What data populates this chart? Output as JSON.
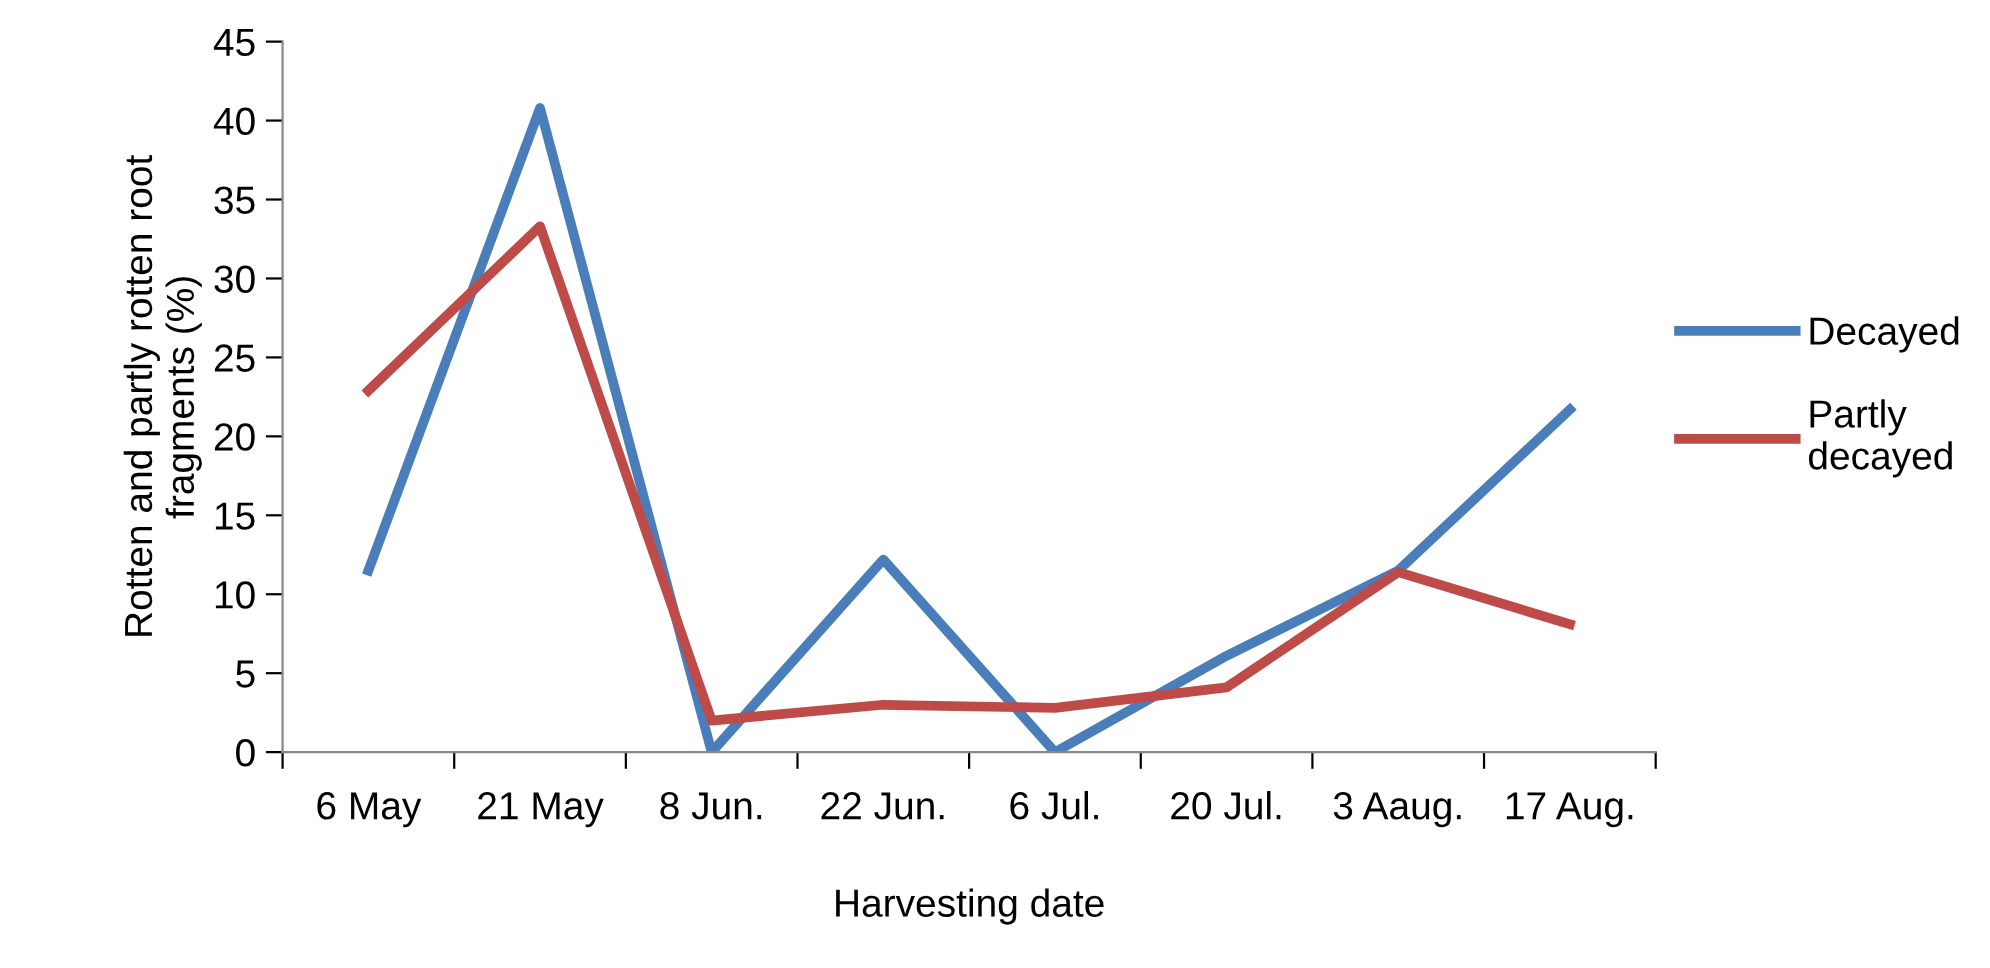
{
  "chart_data": {
    "type": "line",
    "xlabel": "Harvesting date",
    "ylabel": "Rotten and partly rotten root\nfragments (%)",
    "categories": [
      "6 May",
      "21 May",
      "8 Jun.",
      "22 Jun.",
      "6 Jul.",
      "20 Jul.",
      "3 Aaug.",
      "17 Aug."
    ],
    "series": [
      {
        "name": "Decayed",
        "color": "#4a7ebb",
        "values": [
          11.5,
          40.8,
          0,
          12.2,
          0,
          6.1,
          11.5,
          21.7
        ]
      },
      {
        "name": "Partly decayed",
        "color": "#be4b48",
        "values": [
          22.9,
          33.3,
          2,
          3,
          2.8,
          4.1,
          11.4,
          8.1
        ]
      }
    ],
    "ylim": [
      0,
      45
    ],
    "yticks": [
      0,
      5,
      10,
      15,
      20,
      25,
      30,
      35,
      40,
      45
    ],
    "grid": false,
    "legend": "right",
    "marker": "none",
    "line_style": "solid"
  }
}
